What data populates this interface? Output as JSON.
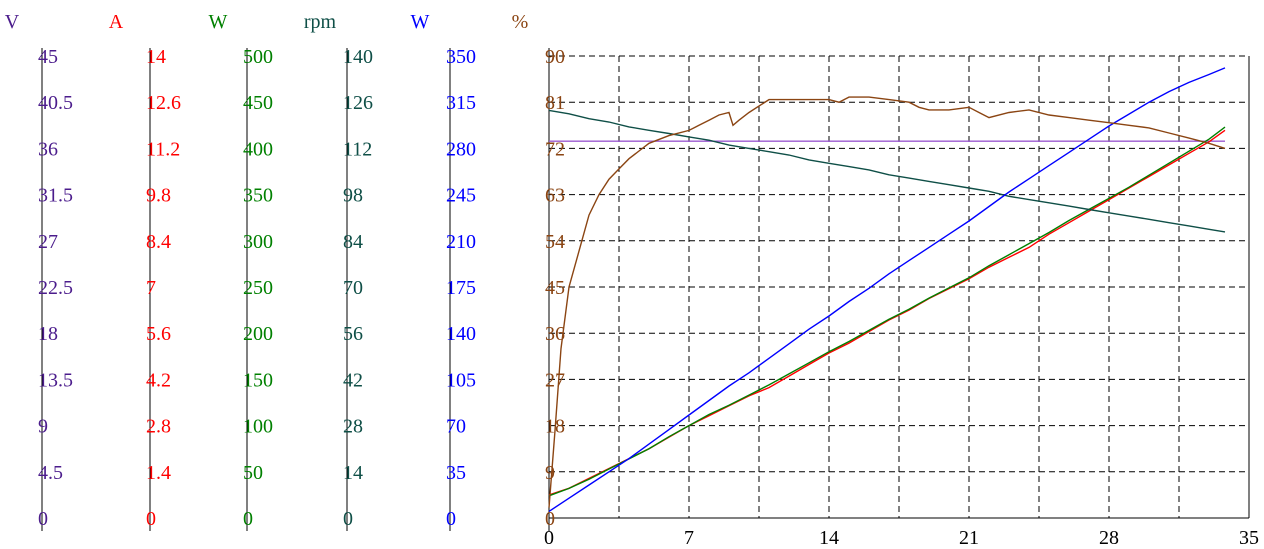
{
  "chart_data": {
    "type": "line",
    "grid": true,
    "x": {
      "range": [
        0,
        35
      ],
      "ticks": [
        0,
        7,
        14,
        21,
        28,
        35
      ]
    },
    "axes": [
      {
        "id": "volt",
        "unit": "V",
        "color": "#4b1c8c",
        "range": [
          0,
          45
        ],
        "ticks": [
          "0",
          "4.5",
          "9",
          "13.5",
          "18",
          "22.5",
          "27",
          "31.5",
          "36",
          "40.5",
          "45"
        ]
      },
      {
        "id": "amp",
        "unit": "A",
        "color": "#ff0000",
        "range": [
          0,
          14
        ],
        "ticks": [
          "0",
          "1.4",
          "2.8",
          "4.2",
          "5.6",
          "7",
          "8.4",
          "9.8",
          "11.2",
          "12.6",
          "14"
        ]
      },
      {
        "id": "win",
        "unit": "W",
        "color": "#008000",
        "range": [
          0,
          500
        ],
        "ticks": [
          "0",
          "50",
          "100",
          "150",
          "200",
          "250",
          "300",
          "350",
          "400",
          "450",
          "500"
        ]
      },
      {
        "id": "rpm",
        "unit": "rpm",
        "color": "#0f4f47",
        "range": [
          0,
          140
        ],
        "ticks": [
          "0",
          "14",
          "28",
          "42",
          "56",
          "70",
          "84",
          "98",
          "112",
          "126",
          "140"
        ]
      },
      {
        "id": "wout",
        "unit": "W",
        "color": "#0000ff",
        "range": [
          0,
          350
        ],
        "ticks": [
          "0",
          "35",
          "70",
          "105",
          "140",
          "175",
          "210",
          "245",
          "280",
          "315",
          "350"
        ]
      },
      {
        "id": "pct",
        "unit": "%",
        "color": "#8b4513",
        "range": [
          0,
          90
        ],
        "ticks": [
          "0",
          "9",
          "18",
          "27",
          "36",
          "45",
          "54",
          "63",
          "72",
          "81",
          "90"
        ]
      }
    ],
    "series": [
      {
        "axis": "volt",
        "color": "#9b59d0",
        "x": [
          0,
          33.8
        ],
        "y": [
          36.7,
          36.7
        ]
      },
      {
        "axis": "amp",
        "color": "#ff0000",
        "x": [
          0,
          1,
          2,
          3,
          4,
          5,
          6,
          7,
          8,
          9,
          10,
          11,
          12,
          13,
          14,
          15,
          16,
          17,
          18,
          19,
          20,
          21,
          22,
          23,
          24,
          25,
          26,
          27,
          28,
          29,
          30,
          31,
          32,
          33,
          33.8
        ],
        "y": [
          0.7,
          0.9,
          1.2,
          1.5,
          1.8,
          2.1,
          2.45,
          2.8,
          3.1,
          3.4,
          3.7,
          3.95,
          4.3,
          4.65,
          5.0,
          5.3,
          5.65,
          6.0,
          6.3,
          6.65,
          6.95,
          7.25,
          7.6,
          7.9,
          8.2,
          8.6,
          8.95,
          9.3,
          9.65,
          10.0,
          10.35,
          10.7,
          11.05,
          11.4,
          11.75
        ]
      },
      {
        "axis": "win",
        "color": "#008000",
        "x": [
          0,
          1,
          2,
          3,
          4,
          5,
          6,
          7,
          8,
          9,
          10,
          11,
          12,
          13,
          14,
          15,
          16,
          17,
          18,
          19,
          20,
          21,
          22,
          23,
          24,
          25,
          26,
          27,
          28,
          29,
          30,
          31,
          32,
          33,
          33.8
        ],
        "y": [
          24,
          32,
          42,
          53,
          64,
          75,
          88,
          100,
          112,
          122,
          133,
          144,
          156,
          168,
          180,
          191,
          203,
          215,
          226,
          238,
          249,
          260,
          273,
          285,
          297,
          309,
          322,
          334,
          346,
          358,
          371,
          384,
          397,
          410,
          423
        ]
      },
      {
        "axis": "rpm",
        "color": "#0f4f47",
        "x": [
          0,
          1,
          2,
          3,
          4,
          5,
          6,
          7,
          8,
          9,
          10,
          11,
          12,
          13,
          14,
          15,
          16,
          17,
          18,
          19,
          20,
          21,
          22,
          23,
          24,
          25,
          26,
          27,
          28,
          29,
          30,
          31,
          32,
          33,
          33.8
        ],
        "y": [
          123.5,
          122.5,
          121.0,
          120.0,
          118.5,
          117.5,
          116.5,
          115.5,
          114.5,
          113.0,
          112.0,
          111.0,
          110.0,
          108.5,
          107.5,
          106.5,
          105.5,
          104.0,
          103.0,
          102.0,
          101.0,
          100.0,
          99.0,
          97.5,
          96.5,
          95.5,
          94.5,
          93.5,
          92.5,
          91.5,
          90.5,
          89.5,
          88.5,
          87.5,
          86.7
        ]
      },
      {
        "axis": "wout",
        "color": "#0000ff",
        "x": [
          0,
          1,
          2,
          3,
          4,
          5,
          6,
          7,
          8,
          9,
          10,
          11,
          12,
          13,
          14,
          15,
          16,
          17,
          18,
          19,
          20,
          21,
          22,
          23,
          24,
          25,
          26,
          27,
          28,
          29,
          30,
          31,
          32,
          33,
          33.8
        ],
        "y": [
          5,
          15,
          25,
          35,
          45,
          56,
          67,
          78,
          89,
          100,
          110,
          121,
          132,
          143,
          153,
          164,
          174,
          185,
          195,
          205,
          215,
          225,
          236,
          247,
          257,
          267,
          277,
          287,
          297,
          306,
          315,
          323,
          330,
          336,
          341
        ]
      },
      {
        "axis": "pct",
        "color": "#8b4513",
        "x": [
          0,
          0.3,
          0.6,
          1,
          1.5,
          2,
          2.5,
          3,
          3.5,
          4,
          4.5,
          5,
          6,
          7,
          7.5,
          8,
          8.5,
          9,
          9.2,
          9.5,
          10,
          11,
          12,
          13,
          14,
          14.5,
          15,
          15.5,
          16,
          17,
          18,
          18.5,
          19,
          20,
          21,
          21.5,
          22,
          23,
          24,
          25,
          26,
          27,
          28,
          29,
          30,
          31,
          32,
          33,
          33.8
        ],
        "y": [
          2,
          17,
          33,
          45,
          52,
          59,
          63,
          66,
          68,
          70,
          71.5,
          73,
          74.5,
          75.5,
          76.5,
          77.5,
          78.5,
          79,
          76.5,
          77.5,
          79,
          81.5,
          81.5,
          81.5,
          81.5,
          81,
          82,
          82,
          82,
          81.5,
          81,
          80,
          79.5,
          79.5,
          80,
          79,
          78,
          79,
          79.5,
          78.5,
          78,
          77.5,
          77,
          76.5,
          76,
          75,
          74,
          73,
          72
        ]
      }
    ]
  }
}
